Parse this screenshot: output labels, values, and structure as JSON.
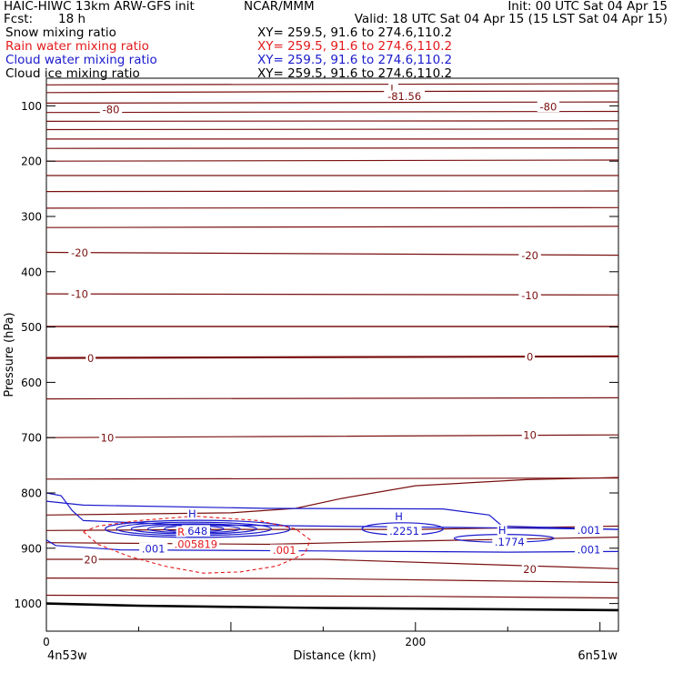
{
  "header": {
    "model": "HAIC-HIWC 13km ARW-GFS init",
    "org": "NCAR/MMM",
    "init": "Init: 00 UTC Sat 04 Apr 15",
    "fcst_label": "Fcst:",
    "fcst_value": "18 h",
    "valid": "Valid: 18 UTC Sat 04 Apr 15 (15 LST Sat 04 Apr 15)",
    "fields": [
      {
        "name": "Snow mixing ratio",
        "xy": "XY= 259.5, 91.6 to 274.6,110.2",
        "color": "#000000"
      },
      {
        "name": "Rain water mixing ratio",
        "xy": "XY= 259.5, 91.6 to 274.6,110.2",
        "color": "#e31a1c"
      },
      {
        "name": "Cloud water mixing ratio",
        "xy": "XY= 259.5, 91.6 to 274.6,110.2",
        "color": "#1a1acd"
      },
      {
        "name": "Cloud ice mixing ratio",
        "xy": "XY= 259.5, 91.6 to 274.6,110.2",
        "color": "#000000"
      }
    ]
  },
  "chart_data": {
    "type": "contour cross-section",
    "xlabel": "Distance (km)",
    "ylabel": "Pressure (hPa)",
    "xlim": [
      0,
      310
    ],
    "ylim": [
      1050,
      50
    ],
    "x_ticks": [
      0,
      200
    ],
    "y_ticks": [
      100,
      200,
      300,
      400,
      500,
      600,
      700,
      800,
      900,
      1000
    ],
    "endpoints": [
      "4n53w",
      "6n51w"
    ],
    "surface_pressure_hpa": [
      1000,
      1012
    ],
    "colors": {
      "temperature": "#7a1010",
      "rain": "#e31a1c",
      "cloud_water": "#1a1acd",
      "frame": "#000000"
    },
    "temperature_levels": [
      -80,
      -20,
      -10,
      0,
      10,
      20
    ],
    "temperature_labels": [
      {
        "text": "-80",
        "x": 35,
        "p": 106
      },
      {
        "text": "-80",
        "x": 272,
        "p": 101
      },
      {
        "text": "-20",
        "x": 18,
        "p": 365
      },
      {
        "text": "-20",
        "x": 262,
        "p": 370
      },
      {
        "text": "-10",
        "x": 18,
        "p": 440
      },
      {
        "text": "-10",
        "x": 262,
        "p": 442
      },
      {
        "text": "0",
        "x": 24,
        "p": 556
      },
      {
        "text": "0",
        "x": 262,
        "p": 553
      },
      {
        "text": "10",
        "x": 33,
        "p": 700
      },
      {
        "text": "10",
        "x": 262,
        "p": 695
      },
      {
        "text": "20",
        "x": 24,
        "p": 920
      },
      {
        "text": "20",
        "x": 262,
        "p": 937
      }
    ],
    "extrema": [
      {
        "text": "L",
        "x": 188,
        "p": 68,
        "color": "#7a1010"
      },
      {
        "text": "-81.56",
        "x": 194,
        "p": 82,
        "color": "#7a1010"
      },
      {
        "text": "H",
        "x": 79,
        "p": 837,
        "color": "#1a1acd"
      },
      {
        "text": ".648",
        "x": 81,
        "p": 868,
        "color": "#1a1acd"
      },
      {
        "text": "H",
        "x": 191,
        "p": 842,
        "color": "#1a1acd"
      },
      {
        "text": ".2251",
        "x": 194,
        "p": 868,
        "color": "#1a1acd"
      },
      {
        "text": "H",
        "x": 247,
        "p": 867,
        "color": "#1a1acd"
      },
      {
        "text": ".1774",
        "x": 251,
        "p": 888,
        "color": "#1a1acd"
      },
      {
        "text": "R",
        "x": 73,
        "p": 870,
        "color": "#e31a1c"
      },
      {
        "text": ".005819",
        "x": 81,
        "p": 892,
        "color": "#e31a1c"
      }
    ],
    "contour_labels": [
      {
        "text": ".001",
        "x": 58,
        "p": 900,
        "color": "#1a1acd"
      },
      {
        "text": ".001",
        "x": 294,
        "p": 867,
        "color": "#1a1acd"
      },
      {
        "text": ".001",
        "x": 294,
        "p": 902,
        "color": "#1a1acd"
      },
      {
        "text": ".001",
        "x": 129,
        "p": 903,
        "color": "#e31a1c"
      }
    ]
  }
}
